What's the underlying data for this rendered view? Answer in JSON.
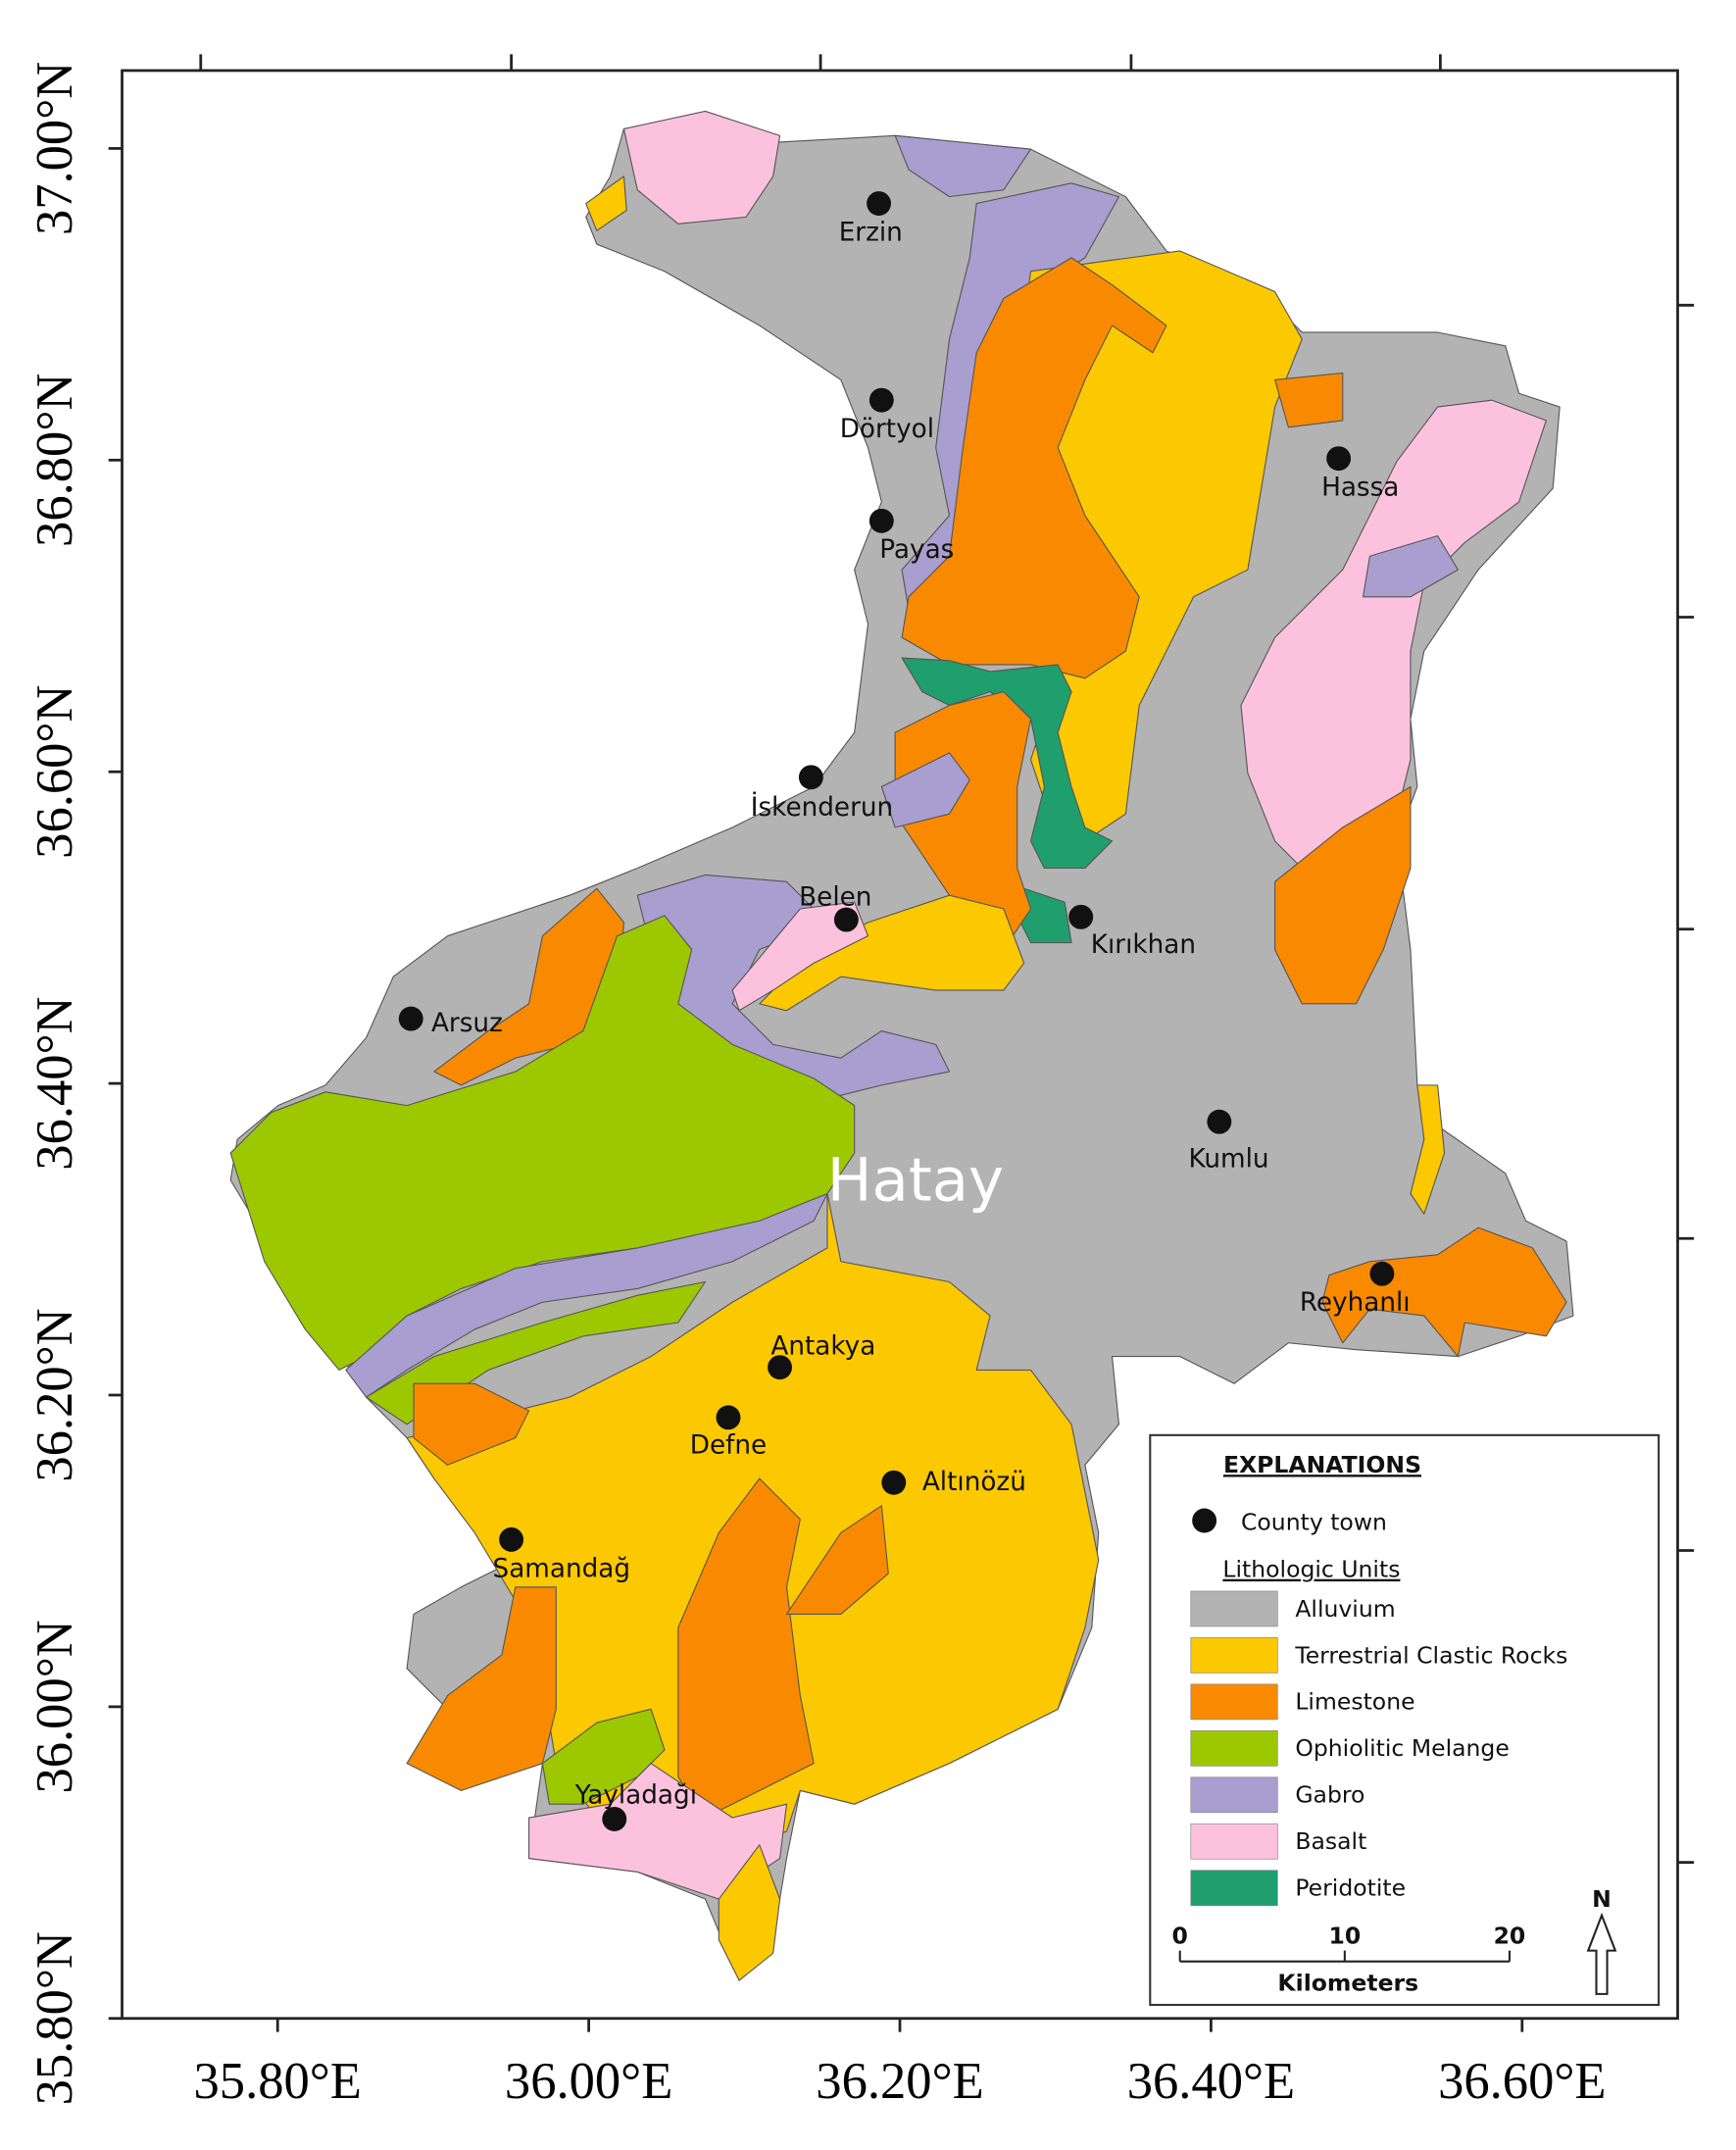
{
  "map": {
    "xlim": [
      35.7,
      36.7
    ],
    "ylim": [
      35.8,
      37.05
    ],
    "xticks": [
      {
        "value": 35.8,
        "label": "35.80°E"
      },
      {
        "value": 36.0,
        "label": "36.00°E"
      },
      {
        "value": 36.2,
        "label": "36.20°E"
      },
      {
        "value": 36.4,
        "label": "36.40°E"
      },
      {
        "value": 36.6,
        "label": "36.60°E"
      }
    ],
    "yticks": [
      {
        "value": 35.8,
        "label": "35.80°N"
      },
      {
        "value": 36.0,
        "label": "36.00°N"
      },
      {
        "value": 36.2,
        "label": "36.20°N"
      },
      {
        "value": 36.4,
        "label": "36.40°N"
      },
      {
        "value": 36.6,
        "label": "36.60°N"
      },
      {
        "value": 36.8,
        "label": "36.80°N"
      },
      {
        "value": 37.0,
        "label": "37.00°N"
      }
    ],
    "region_label": "Hatay",
    "towns": [
      {
        "name": "Erzin"
      },
      {
        "name": "Dörtyol"
      },
      {
        "name": "Payas"
      },
      {
        "name": "İskenderun"
      },
      {
        "name": "Belen"
      },
      {
        "name": "Kırıkhan"
      },
      {
        "name": "Hassa"
      },
      {
        "name": "Arsuz"
      },
      {
        "name": "Kumlu"
      },
      {
        "name": "Reyhanlı"
      },
      {
        "name": "Antakya"
      },
      {
        "name": "Defne"
      },
      {
        "name": "Altınözü"
      },
      {
        "name": "Samandağ"
      },
      {
        "name": "Yayladağı"
      }
    ],
    "legend": {
      "title": "EXPLANATIONS",
      "town_symbol": "County town",
      "units_title": "Lithologic Units",
      "units": [
        {
          "name": "Alluvium",
          "color": "#b3b3b3"
        },
        {
          "name": "Terrestrial Clastic Rocks",
          "color": "#fcc800"
        },
        {
          "name": "Limestone",
          "color": "#f98a00"
        },
        {
          "name": "Ophiolitic Melange",
          "color": "#9dc800"
        },
        {
          "name": "Gabro",
          "color": "#a99ed0"
        },
        {
          "name": "Basalt",
          "color": "#fcc2dd"
        },
        {
          "name": "Peridotite",
          "color": "#1f9e6e"
        }
      ]
    },
    "scale_bar": {
      "ticks": [
        0,
        10,
        20
      ],
      "unit": "Kilometers"
    },
    "north": "N"
  }
}
